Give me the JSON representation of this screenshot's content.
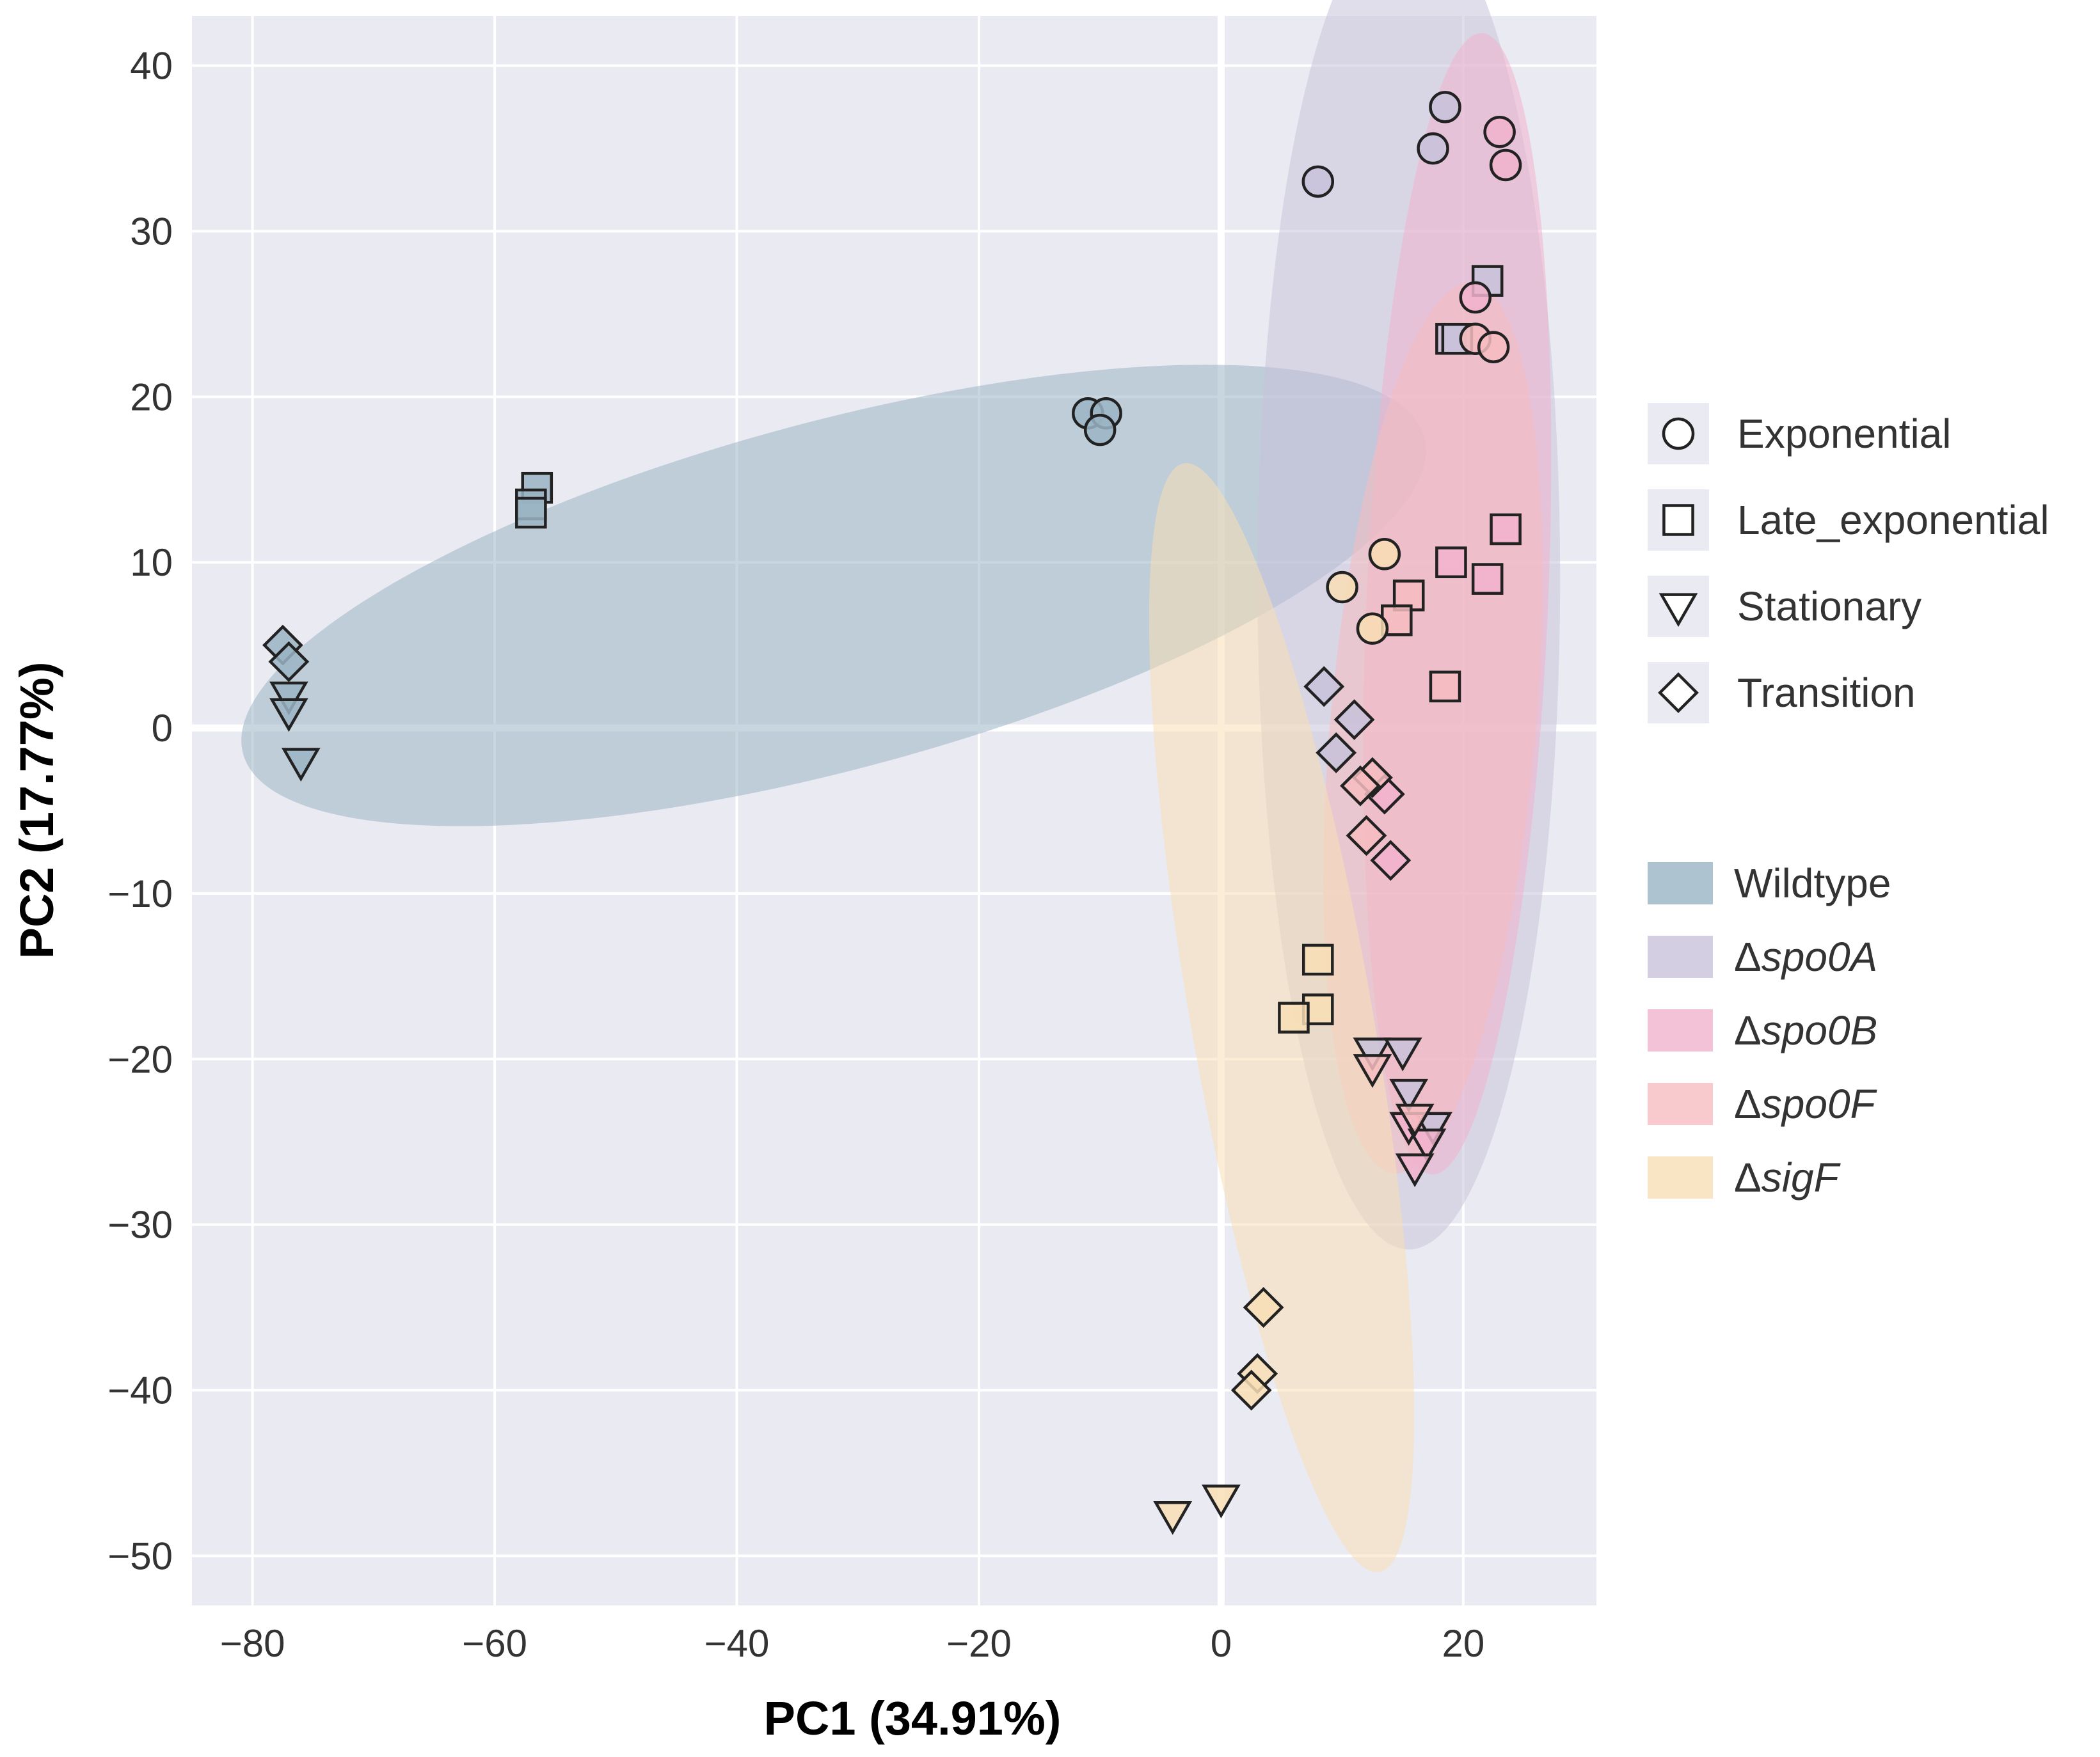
{
  "chart_data": {
    "type": "scatter",
    "title": "",
    "xlabel": "PC1 (34.91%)",
    "ylabel": "PC2 (17.77%)",
    "xlim": [
      -85,
      31
    ],
    "ylim": [
      -53,
      43
    ],
    "xticks": [
      -80,
      -60,
      -40,
      -20,
      0,
      20
    ],
    "yticks": [
      -50,
      -40,
      -30,
      -20,
      -10,
      0,
      10,
      20,
      30,
      40
    ],
    "xtick_labels": [
      "−80",
      "−60",
      "−40",
      "−20",
      "0",
      "20"
    ],
    "ytick_labels": [
      "−50",
      "−40",
      "−30",
      "−20",
      "−10",
      "0",
      "10",
      "20",
      "30",
      "40"
    ],
    "grid": true,
    "legend_position": "right",
    "shape_legend": [
      {
        "marker": "circle",
        "label": "Exponential"
      },
      {
        "marker": "square",
        "label": "Late_exponential"
      },
      {
        "marker": "triangle-down",
        "label": "Stationary"
      },
      {
        "marker": "diamond",
        "label": "Transition"
      }
    ],
    "groups": [
      {
        "name": "Wildtype",
        "prefix": "",
        "italic": "",
        "color": "#9ab4c4",
        "ellipse": {
          "cx": -32,
          "cy": 8,
          "rx": 50.5,
          "ry": 10.5,
          "angle_deg": 15
        },
        "points": [
          {
            "x": -11,
            "y": 19,
            "marker": "circle"
          },
          {
            "x": -9.5,
            "y": 19,
            "marker": "circle"
          },
          {
            "x": -10,
            "y": 18,
            "marker": "circle"
          },
          {
            "x": -56.5,
            "y": 14.5,
            "marker": "square"
          },
          {
            "x": -57,
            "y": 13.5,
            "marker": "square"
          },
          {
            "x": -57,
            "y": 13,
            "marker": "square"
          },
          {
            "x": -77.5,
            "y": 5,
            "marker": "diamond"
          },
          {
            "x": -77,
            "y": 4,
            "marker": "diamond"
          },
          {
            "x": -77,
            "y": 2,
            "marker": "triangle-down"
          },
          {
            "x": -77,
            "y": 1,
            "marker": "triangle-down"
          },
          {
            "x": -76,
            "y": -2,
            "marker": "triangle-down"
          }
        ]
      },
      {
        "name": "Δspo0A",
        "prefix": "Δ",
        "italic": "spo0A",
        "color": "#c8c2db",
        "ellipse": {
          "cx": 15.5,
          "cy": 9,
          "rx": 12.5,
          "ry": 40.5,
          "angle_deg": 0
        },
        "points": [
          {
            "x": 8,
            "y": 33,
            "marker": "circle"
          },
          {
            "x": 17.5,
            "y": 35,
            "marker": "circle"
          },
          {
            "x": 18.5,
            "y": 37.5,
            "marker": "circle"
          },
          {
            "x": 22,
            "y": 27,
            "marker": "square"
          },
          {
            "x": 19,
            "y": 23.5,
            "marker": "square"
          },
          {
            "x": 19.5,
            "y": 23.5,
            "marker": "square"
          },
          {
            "x": 8.5,
            "y": 2.5,
            "marker": "diamond"
          },
          {
            "x": 11,
            "y": 0.5,
            "marker": "diamond"
          },
          {
            "x": 9.5,
            "y": -1.5,
            "marker": "diamond"
          },
          {
            "x": 12.5,
            "y": -19.5,
            "marker": "triangle-down"
          },
          {
            "x": 15,
            "y": -19.5,
            "marker": "triangle-down"
          },
          {
            "x": 15.5,
            "y": -22,
            "marker": "triangle-down"
          },
          {
            "x": 17.5,
            "y": -24,
            "marker": "triangle-down"
          }
        ]
      },
      {
        "name": "Δspo0B",
        "prefix": "Δ",
        "italic": "spo0B",
        "color": "#f1b3cd",
        "ellipse": {
          "cx": 19.5,
          "cy": 7.5,
          "rx": 7.5,
          "ry": 34.5,
          "angle_deg": -2.5
        },
        "points": [
          {
            "x": 23,
            "y": 36,
            "marker": "circle"
          },
          {
            "x": 23.5,
            "y": 34,
            "marker": "circle"
          },
          {
            "x": 21,
            "y": 26,
            "marker": "circle"
          },
          {
            "x": 23.5,
            "y": 12,
            "marker": "square"
          },
          {
            "x": 19,
            "y": 10,
            "marker": "square"
          },
          {
            "x": 22,
            "y": 9,
            "marker": "square"
          },
          {
            "x": 13.5,
            "y": -4,
            "marker": "diamond"
          },
          {
            "x": 14,
            "y": -8,
            "marker": "diamond"
          },
          {
            "x": 15.5,
            "y": -24,
            "marker": "triangle-down"
          },
          {
            "x": 17,
            "y": -25,
            "marker": "triangle-down"
          },
          {
            "x": 16,
            "y": -26.5,
            "marker": "triangle-down"
          }
        ]
      },
      {
        "name": "Δspo0F",
        "prefix": "Δ",
        "italic": "spo0F",
        "color": "#f6bcc0",
        "ellipse": {
          "cx": 17.5,
          "cy": 0,
          "rx": 8.5,
          "ry": 27,
          "angle_deg": -5
        },
        "points": [
          {
            "x": 21,
            "y": 23.5,
            "marker": "circle"
          },
          {
            "x": 22.5,
            "y": 23,
            "marker": "circle"
          },
          {
            "x": 15.5,
            "y": 8,
            "marker": "square"
          },
          {
            "x": 14.5,
            "y": 6.5,
            "marker": "square"
          },
          {
            "x": 18.5,
            "y": 2.5,
            "marker": "square"
          },
          {
            "x": 12.5,
            "y": -3,
            "marker": "diamond"
          },
          {
            "x": 11.5,
            "y": -3.5,
            "marker": "diamond"
          },
          {
            "x": 12,
            "y": -6.5,
            "marker": "diamond"
          },
          {
            "x": 12.5,
            "y": -20.5,
            "marker": "triangle-down"
          },
          {
            "x": 16,
            "y": -23.5,
            "marker": "triangle-down"
          }
        ]
      },
      {
        "name": "ΔsigF",
        "prefix": "Δ",
        "italic": "sigF",
        "color": "#f8deb5",
        "ellipse": {
          "cx": 5,
          "cy": -17.5,
          "rx": 7.5,
          "ry": 34,
          "angle_deg": 10
        },
        "points": [
          {
            "x": 13.5,
            "y": 10.5,
            "marker": "circle"
          },
          {
            "x": 10,
            "y": 8.5,
            "marker": "circle"
          },
          {
            "x": 12.5,
            "y": 6,
            "marker": "circle"
          },
          {
            "x": 8,
            "y": -14,
            "marker": "square"
          },
          {
            "x": 8,
            "y": -17,
            "marker": "square"
          },
          {
            "x": 6,
            "y": -17.5,
            "marker": "square"
          },
          {
            "x": 3.5,
            "y": -35,
            "marker": "diamond"
          },
          {
            "x": 3,
            "y": -39,
            "marker": "diamond"
          },
          {
            "x": 2.5,
            "y": -40,
            "marker": "diamond"
          },
          {
            "x": -4,
            "y": -47.5,
            "marker": "triangle-down"
          },
          {
            "x": 0,
            "y": -46.5,
            "marker": "triangle-down"
          }
        ]
      }
    ]
  }
}
